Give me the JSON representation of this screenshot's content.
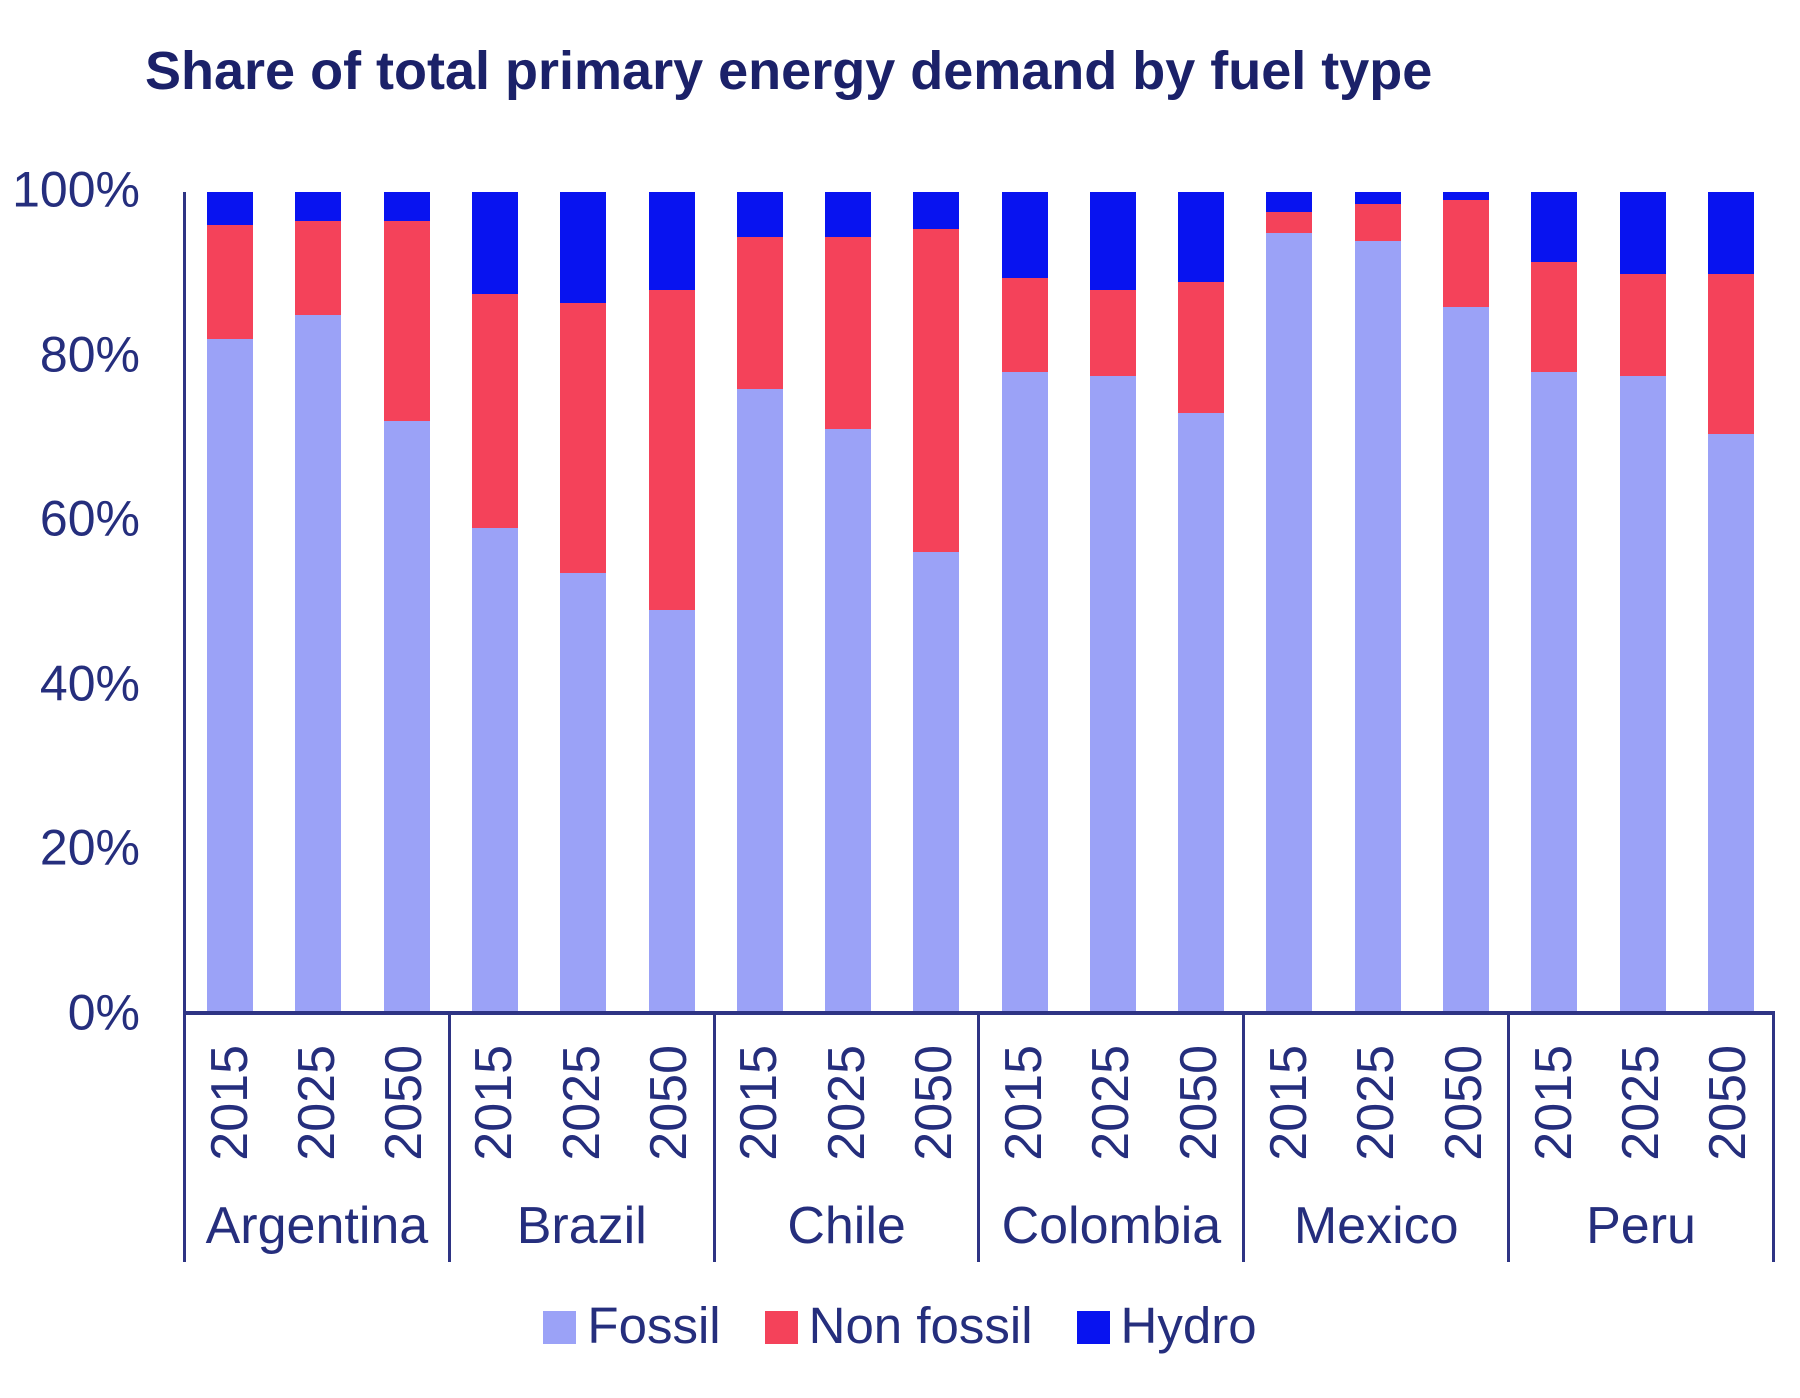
{
  "title": "Share of total primary energy demand by fuel type",
  "chart_data": {
    "type": "bar",
    "stacked": true,
    "title": "Share of total primary energy demand by fuel type",
    "unit": "%",
    "ylim": [
      0,
      100
    ],
    "ytick_labels": [
      "0%",
      "20%",
      "40%",
      "60%",
      "80%",
      "100%"
    ],
    "grid": false,
    "legend_position": "bottom-center",
    "groups": [
      "Argentina",
      "Brazil",
      "Chile",
      "Colombia",
      "Mexico",
      "Peru"
    ],
    "years": [
      "2015",
      "2025",
      "2050"
    ],
    "series": [
      {
        "name": "Fossil",
        "color": "#9ba2f7",
        "values": [
          82,
          85,
          72,
          59,
          53.5,
          49,
          76,
          71,
          56,
          78,
          77.5,
          73,
          95,
          94,
          86,
          78,
          77.5,
          70.5
        ]
      },
      {
        "name": "Non fossil",
        "color": "#f4425a",
        "values": [
          14,
          11.5,
          24.5,
          28.5,
          33,
          39,
          18.5,
          23.5,
          39.5,
          11.5,
          10.5,
          16,
          2.5,
          4.5,
          13,
          13.5,
          12.5,
          19.5
        ]
      },
      {
        "name": "Hydro",
        "color": "#0813f0",
        "values": [
          4,
          3.5,
          3.5,
          12.5,
          13.5,
          12,
          5.5,
          5.5,
          4.5,
          10.5,
          12,
          11,
          2.5,
          1.5,
          1,
          8.5,
          10,
          10
        ]
      }
    ]
  }
}
